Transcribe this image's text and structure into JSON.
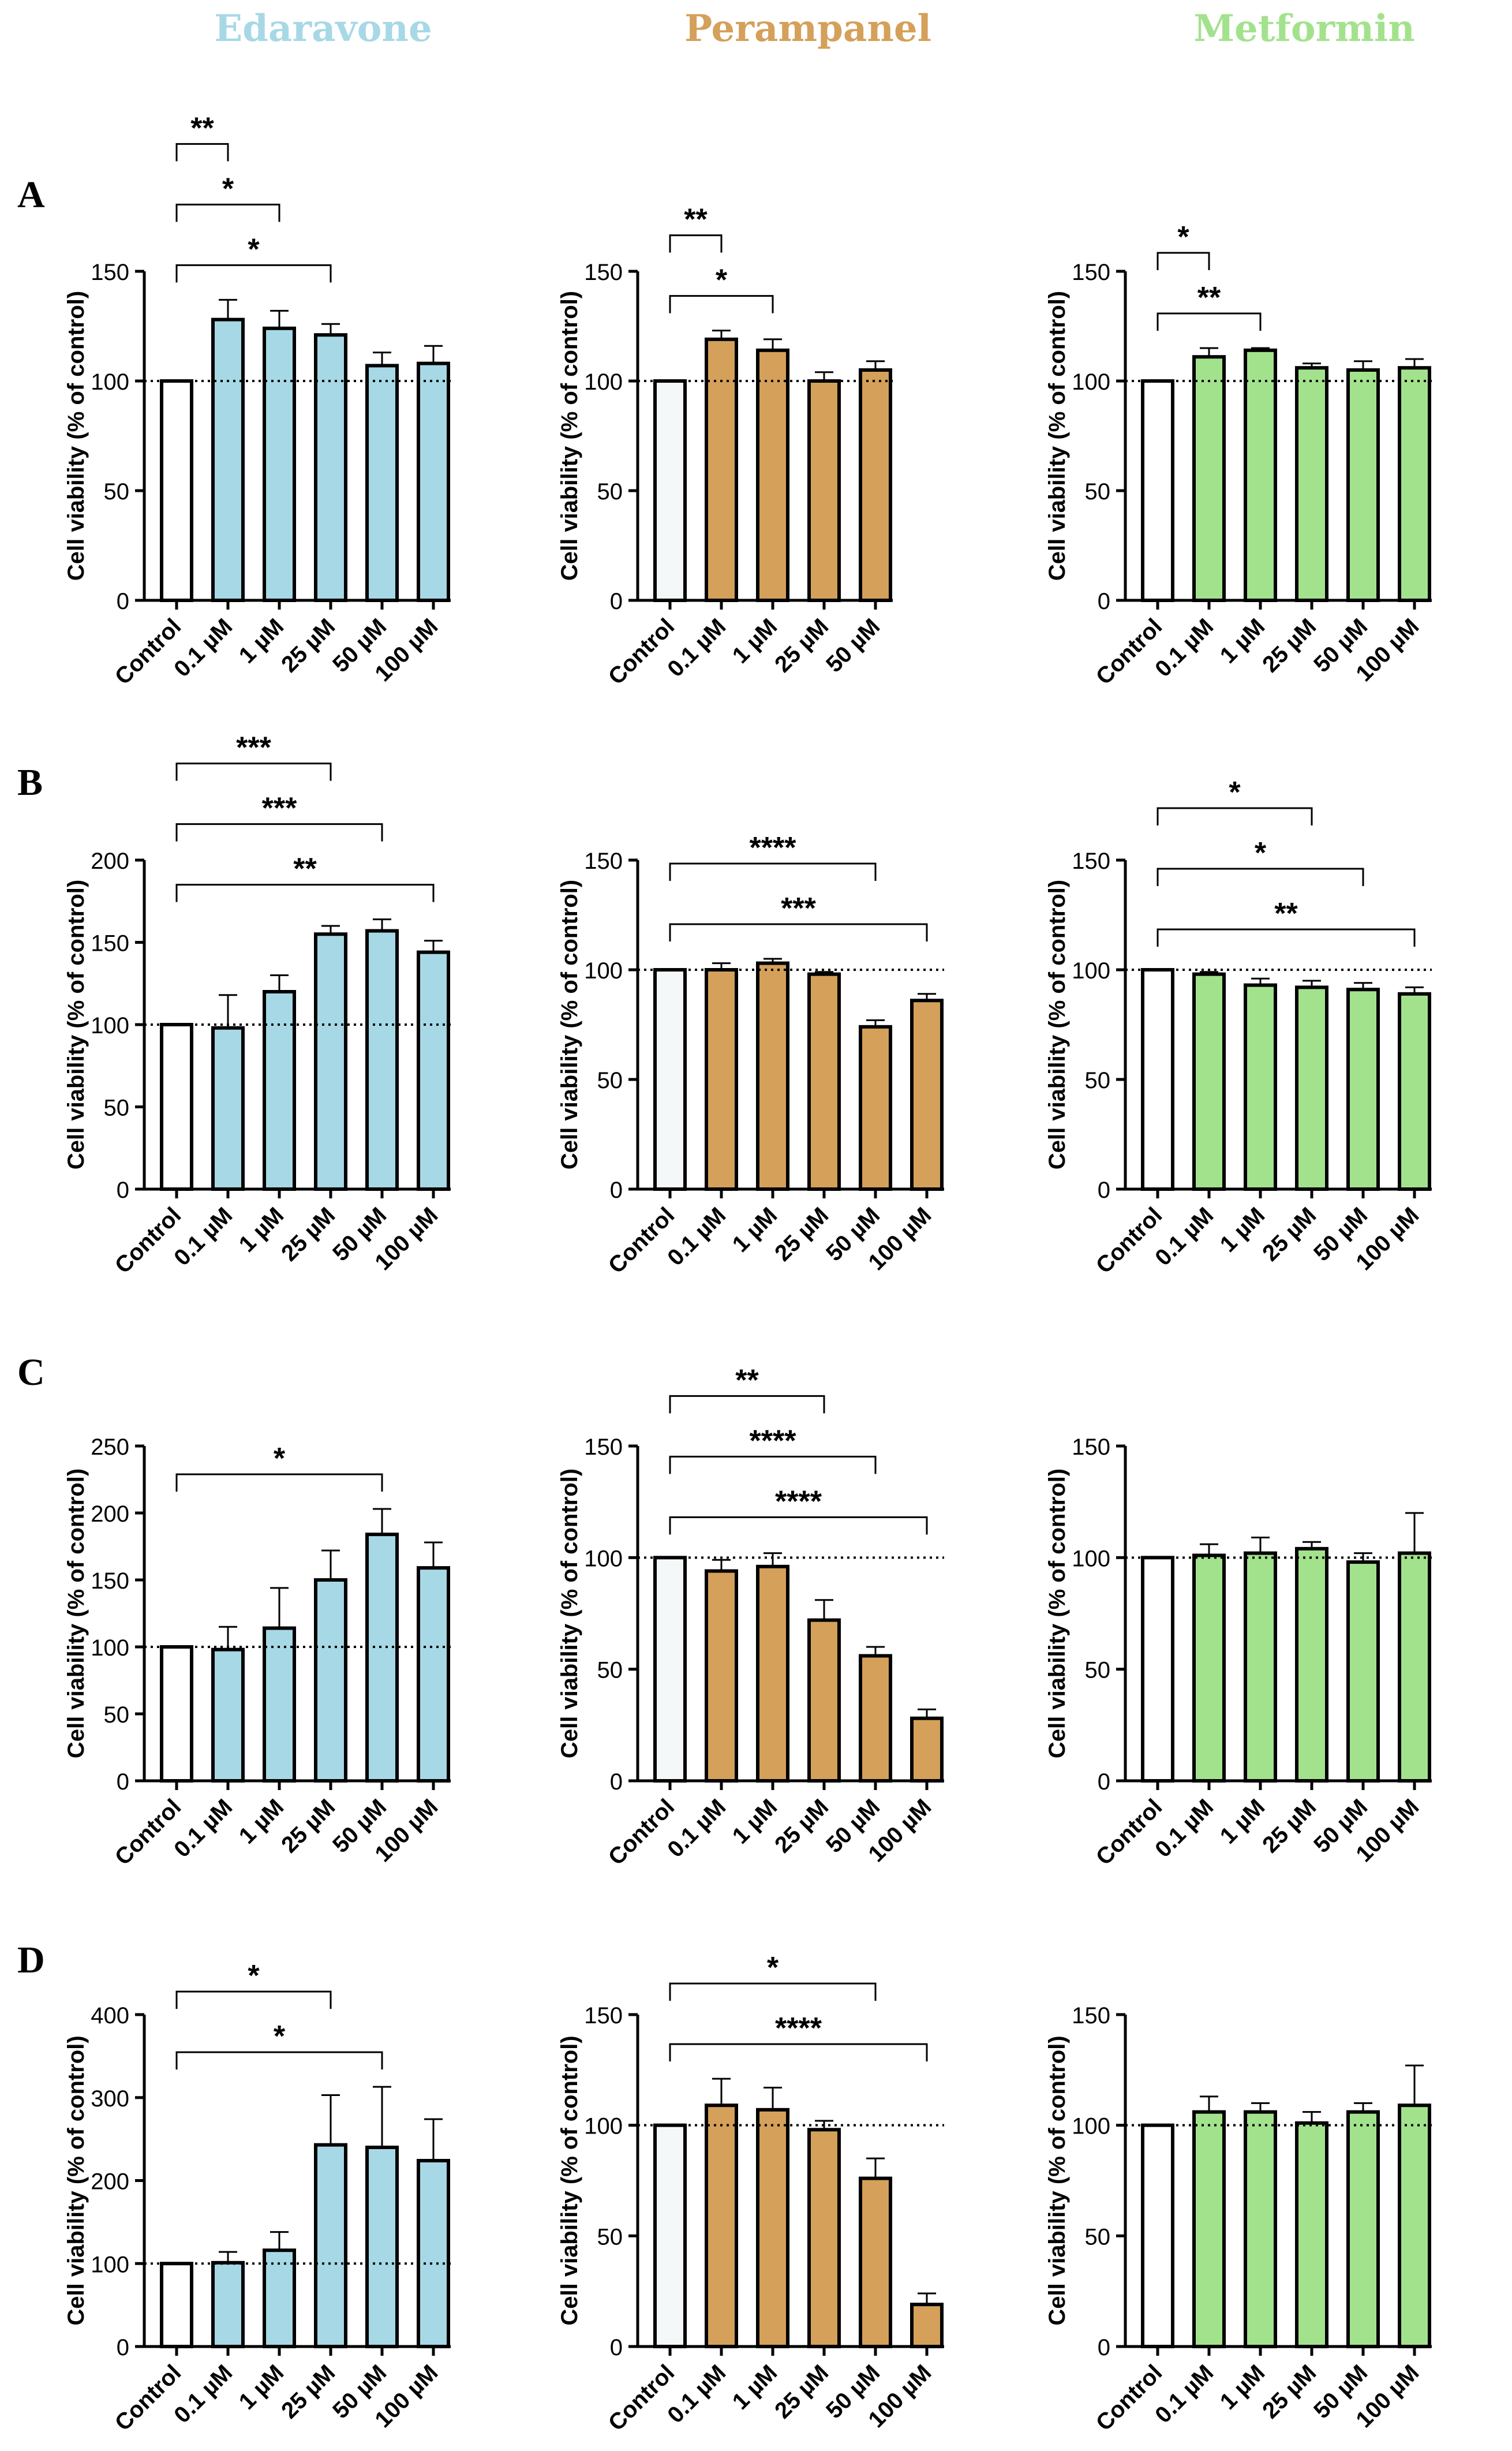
{
  "figure": {
    "drug_titles": [
      {
        "label": "Edaravone",
        "color": "#a7d8e6"
      },
      {
        "label": "Perampanel",
        "color": "#d4a05a"
      },
      {
        "label": "Metformin",
        "color": "#a3e28d"
      }
    ],
    "row_labels": [
      "A",
      "B",
      "C",
      "D"
    ],
    "colors": {
      "control_fill": "#ffffff",
      "edaravone": "#a7d8e6",
      "perampanel": "#d4a05a",
      "metformin": "#a3e28d",
      "perampanel_control": "#f4f8f8"
    }
  },
  "chart_data": [
    {
      "id": "A1",
      "type": "bar",
      "row": "A",
      "drug": "Edaravone",
      "ylabel": "Cell viability (% of control)",
      "ylim": [
        0,
        150
      ],
      "yticks": [
        0,
        50,
        100,
        150
      ],
      "reference_line": 100,
      "categories": [
        "Control",
        "0.1 µM",
        "1 µM",
        "25 µM",
        "50 µM",
        "100 µM"
      ],
      "values": [
        100,
        128,
        124,
        121,
        107,
        108
      ],
      "errors": [
        0,
        9,
        8,
        5,
        6,
        8
      ],
      "significance": [
        {
          "from": 0,
          "to": 1,
          "label": "**"
        },
        {
          "from": 0,
          "to": 2,
          "label": "*"
        },
        {
          "from": 0,
          "to": 3,
          "label": "*"
        }
      ]
    },
    {
      "id": "A2",
      "type": "bar",
      "row": "A",
      "drug": "Perampanel",
      "ylabel": "Cell viability (% of control)",
      "ylim": [
        0,
        150
      ],
      "yticks": [
        0,
        50,
        100,
        150
      ],
      "reference_line": 100,
      "categories": [
        "Control",
        "0.1 µM",
        "1 µM",
        "25 µM",
        "50 µM"
      ],
      "values": [
        100,
        119,
        114,
        100,
        105
      ],
      "errors": [
        0,
        4,
        5,
        4,
        4
      ],
      "significance": [
        {
          "from": 0,
          "to": 1,
          "label": "**"
        },
        {
          "from": 0,
          "to": 2,
          "label": "*"
        }
      ]
    },
    {
      "id": "A3",
      "type": "bar",
      "row": "A",
      "drug": "Metformin",
      "ylabel": "Cell viability (% of control)",
      "ylim": [
        0,
        150
      ],
      "yticks": [
        0,
        50,
        100,
        150
      ],
      "reference_line": 100,
      "categories": [
        "Control",
        "0.1 µM",
        "1 µM",
        "25 µM",
        "50 µM",
        "100 µM"
      ],
      "values": [
        100,
        111,
        114,
        106,
        105,
        106
      ],
      "errors": [
        0,
        4,
        1,
        2,
        4,
        4
      ],
      "significance": [
        {
          "from": 0,
          "to": 1,
          "label": "*"
        },
        {
          "from": 0,
          "to": 2,
          "label": "**"
        }
      ]
    },
    {
      "id": "B1",
      "type": "bar",
      "row": "B",
      "drug": "Edaravone",
      "ylabel": "Cell viability (% of control)",
      "ylim": [
        0,
        200
      ],
      "yticks": [
        0,
        50,
        100,
        150,
        200
      ],
      "reference_line": 100,
      "categories": [
        "Control",
        "0.1 µM",
        "1 µM",
        "25 µM",
        "50 µM",
        "100 µM"
      ],
      "values": [
        100,
        98,
        120,
        155,
        157,
        144
      ],
      "errors": [
        0,
        20,
        10,
        5,
        7,
        7
      ],
      "significance": [
        {
          "from": 0,
          "to": 3,
          "label": "***"
        },
        {
          "from": 0,
          "to": 4,
          "label": "***"
        },
        {
          "from": 0,
          "to": 5,
          "label": "**"
        }
      ]
    },
    {
      "id": "B2",
      "type": "bar",
      "row": "B",
      "drug": "Perampanel",
      "ylabel": "Cell viability (% of control)",
      "ylim": [
        0,
        150
      ],
      "yticks": [
        0,
        50,
        100,
        150
      ],
      "reference_line": 100,
      "categories": [
        "Control",
        "0.1 µM",
        "1 µM",
        "25 µM",
        "50 µM",
        "100 µM"
      ],
      "values": [
        100,
        100,
        103,
        98,
        74,
        86
      ],
      "errors": [
        0,
        3,
        2,
        1,
        3,
        3
      ],
      "significance": [
        {
          "from": 0,
          "to": 4,
          "label": "****"
        },
        {
          "from": 0,
          "to": 5,
          "label": "***"
        }
      ]
    },
    {
      "id": "B3",
      "type": "bar",
      "row": "B",
      "drug": "Metformin",
      "ylabel": "Cell viability (% of control)",
      "ylim": [
        0,
        150
      ],
      "yticks": [
        0,
        50,
        100,
        150
      ],
      "reference_line": 100,
      "categories": [
        "Control",
        "0.1 µM",
        "1 µM",
        "25 µM",
        "50 µM",
        "100 µM"
      ],
      "values": [
        100,
        98,
        93,
        92,
        91,
        89
      ],
      "errors": [
        0,
        1,
        3,
        3,
        3,
        3
      ],
      "significance": [
        {
          "from": 0,
          "to": 3,
          "label": "*"
        },
        {
          "from": 0,
          "to": 4,
          "label": "*"
        },
        {
          "from": 0,
          "to": 5,
          "label": "**"
        }
      ]
    },
    {
      "id": "C1",
      "type": "bar",
      "row": "C",
      "drug": "Edaravone",
      "ylabel": "Cell viability (% of control)",
      "ylim": [
        0,
        250
      ],
      "yticks": [
        0,
        50,
        100,
        150,
        200,
        250
      ],
      "reference_line": 100,
      "categories": [
        "Control",
        "0.1 µM",
        "1 µM",
        "25 µM",
        "50 µM",
        "100 µM"
      ],
      "values": [
        100,
        98,
        114,
        150,
        184,
        159
      ],
      "errors": [
        0,
        17,
        30,
        22,
        19,
        19
      ],
      "significance": [
        {
          "from": 0,
          "to": 4,
          "label": "*"
        }
      ]
    },
    {
      "id": "C2",
      "type": "bar",
      "row": "C",
      "drug": "Perampanel",
      "ylabel": "Cell viability (% of control)",
      "ylim": [
        0,
        150
      ],
      "yticks": [
        0,
        50,
        100,
        150
      ],
      "reference_line": 100,
      "categories": [
        "Control",
        "0.1 µM",
        "1 µM",
        "25 µM",
        "50 µM",
        "100 µM"
      ],
      "values": [
        100,
        94,
        96,
        72,
        56,
        28
      ],
      "errors": [
        0,
        5,
        6,
        9,
        4,
        4
      ],
      "significance": [
        {
          "from": 0,
          "to": 3,
          "label": "**"
        },
        {
          "from": 0,
          "to": 4,
          "label": "****"
        },
        {
          "from": 0,
          "to": 5,
          "label": "****"
        }
      ]
    },
    {
      "id": "C3",
      "type": "bar",
      "row": "C",
      "drug": "Metformin",
      "ylabel": "Cell viability (% of control)",
      "ylim": [
        0,
        150
      ],
      "yticks": [
        0,
        50,
        100,
        150
      ],
      "reference_line": 100,
      "categories": [
        "Control",
        "0.1 µM",
        "1 µM",
        "25 µM",
        "50 µM",
        "100 µM"
      ],
      "values": [
        100,
        101,
        102,
        104,
        98,
        102
      ],
      "errors": [
        0,
        5,
        7,
        3,
        4,
        18
      ],
      "significance": []
    },
    {
      "id": "D1",
      "type": "bar",
      "row": "D",
      "drug": "Edaravone",
      "ylabel": "Cell viability (% of control)",
      "ylim": [
        0,
        400
      ],
      "yticks": [
        0,
        100,
        200,
        300,
        400
      ],
      "reference_line": 100,
      "categories": [
        "Control",
        "0.1 µM",
        "1 µM",
        "25 µM",
        "50 µM",
        "100 µM"
      ],
      "values": [
        100,
        101,
        116,
        243,
        240,
        224
      ],
      "errors": [
        0,
        13,
        22,
        60,
        73,
        50
      ],
      "significance": [
        {
          "from": 0,
          "to": 3,
          "label": "*"
        },
        {
          "from": 0,
          "to": 4,
          "label": "*"
        }
      ]
    },
    {
      "id": "D2",
      "type": "bar",
      "row": "D",
      "drug": "Perampanel",
      "ylabel": "Cell viability (% of control)",
      "ylim": [
        0,
        150
      ],
      "yticks": [
        0,
        50,
        100,
        150
      ],
      "reference_line": 100,
      "categories": [
        "Control",
        "0.1 µM",
        "1 µM",
        "25 µM",
        "50 µM",
        "100 µM"
      ],
      "values": [
        100,
        109,
        107,
        98,
        76,
        19
      ],
      "errors": [
        0,
        12,
        10,
        4,
        9,
        5
      ],
      "significance": [
        {
          "from": 0,
          "to": 4,
          "label": "*"
        },
        {
          "from": 0,
          "to": 5,
          "label": "****"
        }
      ]
    },
    {
      "id": "D3",
      "type": "bar",
      "row": "D",
      "drug": "Metformin",
      "ylabel": "Cell viability (% of control)",
      "ylim": [
        0,
        150
      ],
      "yticks": [
        0,
        50,
        100,
        150
      ],
      "reference_line": 100,
      "categories": [
        "Control",
        "0.1 µM",
        "1 µM",
        "25 µM",
        "50 µM",
        "100 µM"
      ],
      "values": [
        100,
        106,
        106,
        101,
        106,
        109
      ],
      "errors": [
        0,
        7,
        4,
        5,
        4,
        18
      ],
      "significance": []
    }
  ]
}
